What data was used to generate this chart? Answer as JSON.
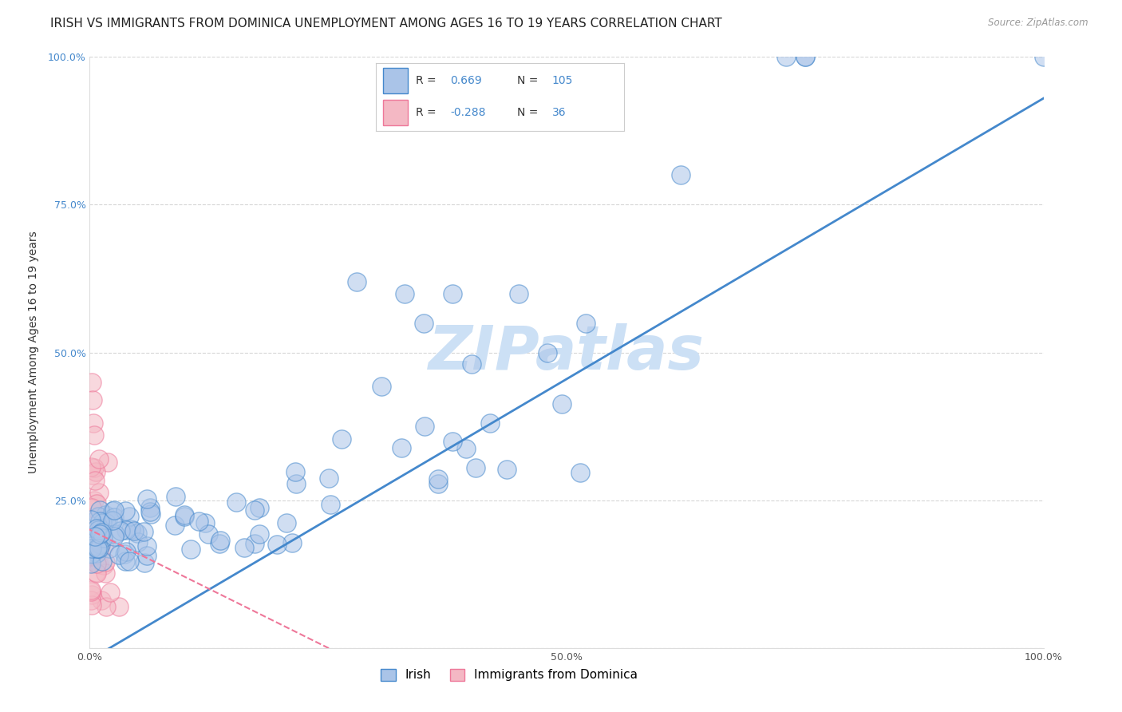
{
  "title": "IRISH VS IMMIGRANTS FROM DOMINICA UNEMPLOYMENT AMONG AGES 16 TO 19 YEARS CORRELATION CHART",
  "source": "Source: ZipAtlas.com",
  "ylabel": "Unemployment Among Ages 16 to 19 years",
  "xlim": [
    0.0,
    1.0
  ],
  "ylim": [
    0.0,
    1.0
  ],
  "background_color": "#ffffff",
  "grid_color": "#cccccc",
  "watermark_text": "ZIPatlas",
  "watermark_color": "#ddeeff",
  "irish_fill_color": "#aac4e8",
  "dominica_fill_color": "#f4b8c4",
  "irish_line_color": "#4488cc",
  "dominica_line_color": "#ee7799",
  "legend_irish_label": "Irish",
  "legend_dominica_label": "Immigrants from Dominica",
  "R_irish": 0.669,
  "N_irish": 105,
  "R_dominica": -0.288,
  "N_dominica": 36,
  "title_fontsize": 11,
  "axis_label_fontsize": 10,
  "tick_fontsize": 9,
  "legend_fontsize": 11,
  "irish_slope": 0.95,
  "irish_intercept": -0.02,
  "dom_slope": -0.8,
  "dom_intercept": 0.2
}
